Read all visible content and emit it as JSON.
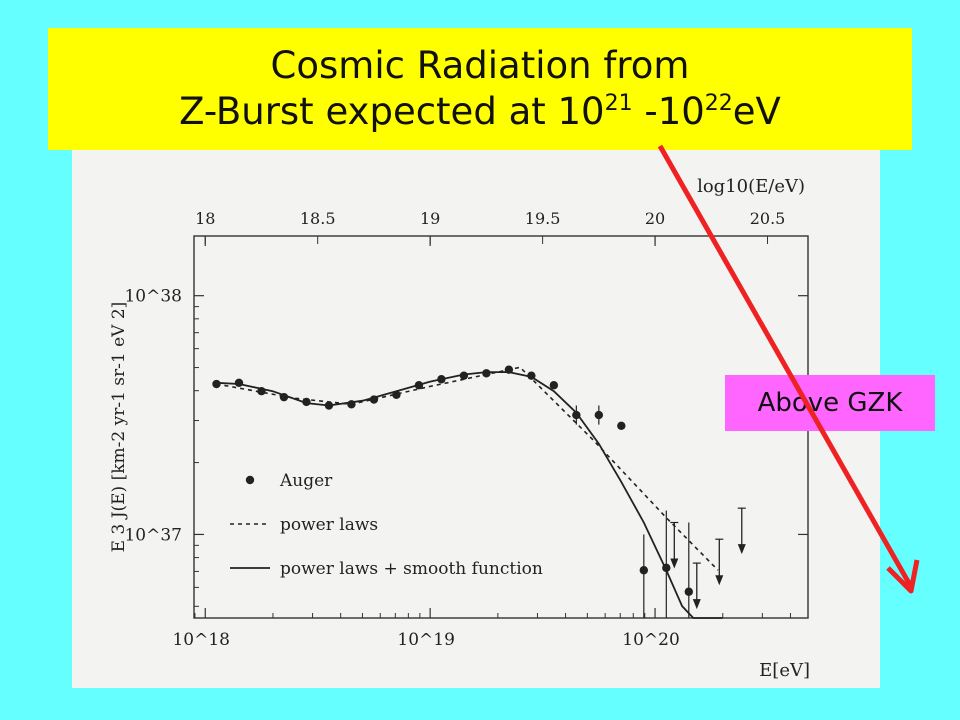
{
  "title": {
    "line1": "Cosmic Radiation from",
    "line2_pre": "Z-Burst expected at 10",
    "line2_sup1": "21",
    "line2_mid": " -10",
    "line2_sup2": "22",
    "line2_post": "eV"
  },
  "callout": {
    "label": "Above GZK"
  },
  "colors": {
    "background": "#66ffff",
    "title_box": "#ffff00",
    "callout_box": "#ff66ff",
    "arrow": "#ee2222"
  },
  "chart_data": {
    "type": "scatter",
    "x_scale": "log",
    "y_scale": "log",
    "xlabel": "E[eV]",
    "top_axis_label": "log10(E/eV)",
    "ylabel": "E 3 J(E) [km-2 yr-1 sr-1 eV 2]",
    "x_ticks": [
      "10^18",
      "10^19",
      "10^20"
    ],
    "top_ticks": [
      "18",
      "18.5",
      "19",
      "19.5",
      "20",
      "20.5"
    ],
    "y_ticks": [
      "10^37",
      "10^38"
    ],
    "xlim_log10": [
      17.95,
      20.68
    ],
    "ylim_log10": [
      36.65,
      38.25
    ],
    "legend": {
      "position": "bottom-left",
      "entries": [
        {
          "marker": "dot",
          "label": "Auger"
        },
        {
          "marker": "dashed",
          "label": "power laws"
        },
        {
          "marker": "solid",
          "label": "power laws + smooth function"
        }
      ]
    },
    "series": [
      {
        "name": "Auger",
        "style": "points",
        "log10_E": [
          18.05,
          18.15,
          18.25,
          18.35,
          18.45,
          18.55,
          18.65,
          18.75,
          18.85,
          18.95,
          19.05,
          19.15,
          19.25,
          19.35,
          19.45,
          19.55,
          19.65,
          19.75,
          19.85,
          19.95,
          20.05,
          20.15
        ],
        "log10_E3J": [
          37.63,
          37.635,
          37.6,
          37.575,
          37.555,
          37.54,
          37.545,
          37.565,
          37.585,
          37.625,
          37.65,
          37.665,
          37.675,
          37.69,
          37.665,
          37.625,
          37.5,
          37.5,
          37.455,
          36.85,
          36.86,
          36.76
        ],
        "error_bars_log10": [
          null,
          null,
          null,
          null,
          null,
          null,
          null,
          null,
          null,
          null,
          null,
          null,
          null,
          null,
          null,
          null,
          [
            37.46,
            37.54
          ],
          [
            37.46,
            37.54
          ],
          null,
          [
            36.65,
            37.0
          ],
          [
            36.65,
            37.1
          ],
          [
            36.65,
            37.05
          ]
        ],
        "upper_limits": {
          "log10_E": [
            20.05,
            20.15,
            20.25,
            20.35
          ],
          "log10_E3J": [
            37.05,
            36.88,
            36.98,
            37.11
          ]
        }
      },
      {
        "name": "power laws",
        "style": "dashed",
        "log10_E": [
          18.05,
          18.4,
          18.65,
          19.0,
          19.2,
          19.4,
          19.72,
          20.05,
          20.28
        ],
        "log10_E3J": [
          37.63,
          37.57,
          37.545,
          37.62,
          37.66,
          37.7,
          37.4,
          37.07,
          36.85
        ]
      },
      {
        "name": "power laws + smooth function",
        "style": "solid",
        "log10_E": [
          18.05,
          18.15,
          18.3,
          18.45,
          18.55,
          18.7,
          18.85,
          19.0,
          19.15,
          19.25,
          19.35,
          19.45,
          19.55,
          19.65,
          19.75,
          19.85,
          19.95,
          20.05,
          20.12,
          20.17,
          20.3
        ],
        "log10_E3J": [
          37.635,
          37.63,
          37.6,
          37.55,
          37.54,
          37.56,
          37.6,
          37.64,
          37.67,
          37.68,
          37.68,
          37.66,
          37.6,
          37.51,
          37.38,
          37.22,
          37.05,
          36.85,
          36.7,
          36.65,
          36.65
        ]
      }
    ]
  }
}
